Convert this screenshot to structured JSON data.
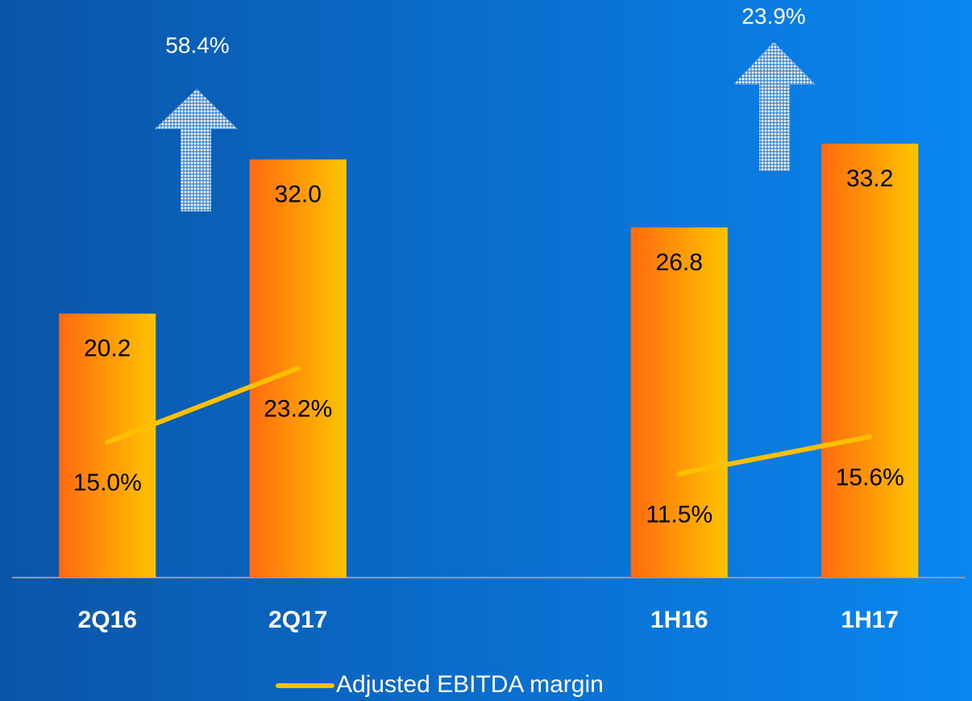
{
  "chart_data": {
    "type": "bar",
    "categories": [
      "2Q16",
      "2Q17",
      null,
      "1H16",
      "1H17"
    ],
    "series": [
      {
        "color": "#ff6a10",
        "values": [
          20.2,
          32.0,
          null,
          26.8,
          33.2
        ],
        "value_labels": [
          "20.2",
          "32.0",
          null,
          "26.8",
          "33.2"
        ]
      },
      {
        "type": "line",
        "name": "Adjusted EBITDA margin",
        "color": "#ffc000",
        "axis": "y2",
        "values": [
          15.0,
          23.2,
          null,
          11.5,
          15.6
        ],
        "value_labels": [
          "15.0%",
          "23.2%",
          null,
          "11.5%",
          "15.6%"
        ]
      }
    ],
    "annotations": [
      {
        "text": "58.4%"
      },
      {
        "text": "23.9%"
      }
    ],
    "ylim": [
      0,
      44.2
    ],
    "y2lim": [
      0,
      64
    ]
  }
}
